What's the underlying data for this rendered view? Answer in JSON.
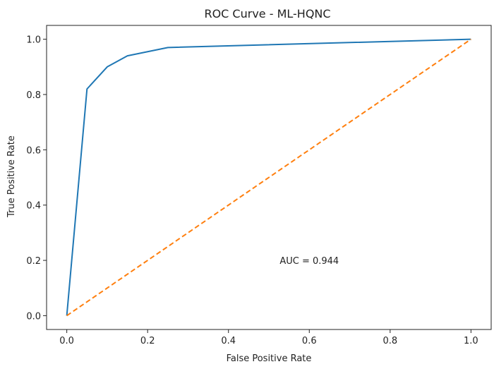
{
  "chart_data": {
    "type": "line",
    "title": "ROC Curve - ML-HQNC",
    "xlabel": "False Positive Rate",
    "ylabel": "True Positive Rate",
    "xlim": [
      -0.05,
      1.05
    ],
    "ylim": [
      -0.05,
      1.05
    ],
    "xticks": [
      0.0,
      0.2,
      0.4,
      0.6,
      0.8,
      1.0
    ],
    "yticks": [
      0.0,
      0.2,
      0.4,
      0.6,
      0.8,
      1.0
    ],
    "xtick_labels": [
      "0.0",
      "0.2",
      "0.4",
      "0.6",
      "0.8",
      "1.0"
    ],
    "ytick_labels": [
      "0.0",
      "0.2",
      "0.4",
      "0.6",
      "0.8",
      "1.0"
    ],
    "grid": false,
    "series": [
      {
        "style": "solid",
        "color": "#1f77b4",
        "x": [
          0.0,
          0.05,
          0.1,
          0.15,
          0.25,
          1.0
        ],
        "y": [
          0.0,
          0.82,
          0.9,
          0.94,
          0.97,
          1.0
        ]
      },
      {
        "style": "dashed",
        "color": "#ff7f0e",
        "x": [
          0.0,
          1.0
        ],
        "y": [
          0.0,
          1.0
        ]
      }
    ],
    "annotations": [
      {
        "text": "AUC = 0.944",
        "x": 0.6,
        "y": 0.2
      }
    ]
  }
}
